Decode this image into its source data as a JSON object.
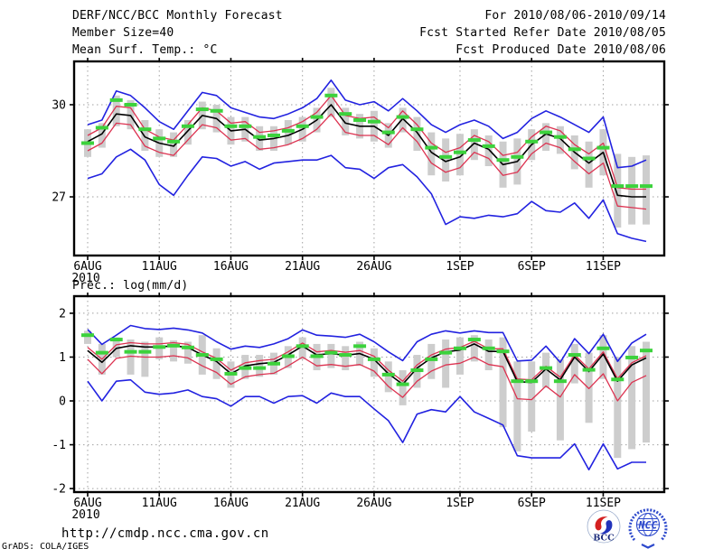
{
  "header": {
    "title": "DERF/NCC/BCC Monthly Forecast",
    "member_size": "Member Size=40",
    "for_range": "For 2010/08/06-2010/09/14",
    "fcst_started": "Fcst Started Refer Date 2010/08/05",
    "fcst_produced": "Fcst Produced Date 2010/08/06"
  },
  "labels": {
    "temp_chart_title": "Mean Surf. Temp.: °C",
    "precip_chart_title": "Prec.: log(mm/d)"
  },
  "footer": {
    "url": "http://cmdp.ncc.cma.gov.cn",
    "grads_credit": "GrADS: COLA/IGES",
    "bcc_logo_text": "BCC",
    "ncc_logo_text": "NCC"
  },
  "colors": {
    "ensemble_max_min": "#2222e0",
    "spread_band": "#dc3250",
    "ensemble_mean": "#000000",
    "verification_dash": "#3cd23c",
    "member_bar": "#cdcdcd",
    "gridline": "#a0a0a0",
    "frame": "#000000",
    "logo_blue": "#2d49cc",
    "logo_navy": "#1a2a7a",
    "logo_red": "#d42020"
  },
  "chart_data": [
    {
      "type": "line",
      "title": "Mean Surf. Temp.: °C",
      "xlabel": "",
      "ylabel": "°C",
      "x_year_label": "2010",
      "x_tick_labels": [
        "6AUG",
        "11AUG",
        "16AUG",
        "21AUG",
        "26AUG",
        "1SEP",
        "6SEP",
        "11SEP"
      ],
      "x_tick_days": [
        0,
        5,
        10,
        15,
        20,
        26,
        31,
        36
      ],
      "categories": [
        "6AUG",
        "7AUG",
        "8AUG",
        "9AUG",
        "10AUG",
        "11AUG",
        "12AUG",
        "13AUG",
        "14AUG",
        "15AUG",
        "16AUG",
        "17AUG",
        "18AUG",
        "19AUG",
        "20AUG",
        "21AUG",
        "22AUG",
        "23AUG",
        "24AUG",
        "25AUG",
        "26AUG",
        "27AUG",
        "28AUG",
        "29AUG",
        "30AUG",
        "31AUG",
        "1SEP",
        "2SEP",
        "3SEP",
        "4SEP",
        "5SEP",
        "6SEP",
        "7SEP",
        "8SEP",
        "9SEP",
        "10SEP",
        "11SEP",
        "12SEP",
        "13SEP",
        "14SEP"
      ],
      "ylim": [
        25.09,
        31.41
      ],
      "yticks": [
        27,
        30
      ],
      "grid": true,
      "legend": "none",
      "series": [
        {
          "name": "ensemble-max",
          "color": "#2222e0",
          "style": "line",
          "values": [
            29.35,
            29.5,
            30.45,
            30.3,
            29.9,
            29.45,
            29.2,
            29.8,
            30.4,
            30.3,
            29.9,
            29.75,
            29.6,
            29.55,
            29.7,
            29.9,
            30.2,
            30.8,
            30.15,
            30.0,
            30.1,
            29.8,
            30.2,
            29.8,
            29.35,
            29.1,
            29.35,
            29.5,
            29.3,
            28.9,
            29.1,
            29.55,
            29.8,
            29.6,
            29.35,
            29.1,
            29.6,
            27.95,
            28.0,
            28.2
          ]
        },
        {
          "name": "ensemble-min",
          "color": "#2222e0",
          "style": "line",
          "values": [
            27.6,
            27.75,
            28.3,
            28.55,
            28.2,
            27.4,
            27.05,
            27.7,
            28.3,
            28.25,
            28.0,
            28.15,
            27.9,
            28.1,
            28.15,
            28.2,
            28.2,
            28.35,
            27.95,
            27.9,
            27.6,
            27.95,
            28.05,
            27.65,
            27.1,
            26.1,
            26.35,
            26.3,
            26.4,
            26.35,
            26.45,
            26.85,
            26.55,
            26.5,
            26.8,
            26.3,
            26.9,
            25.8,
            25.65,
            25.55
          ]
        },
        {
          "name": "mean-plus-spread",
          "color": "#dc3250",
          "style": "line",
          "values": [
            29.0,
            29.25,
            29.95,
            29.9,
            29.2,
            28.95,
            28.85,
            29.35,
            29.9,
            29.8,
            29.4,
            29.45,
            29.1,
            29.15,
            29.25,
            29.45,
            29.75,
            30.3,
            29.65,
            29.55,
            29.6,
            29.25,
            29.8,
            29.35,
            28.75,
            28.45,
            28.6,
            29.0,
            28.8,
            28.35,
            28.45,
            28.95,
            29.3,
            29.15,
            28.7,
            28.4,
            28.75,
            27.3,
            27.25,
            27.25
          ]
        },
        {
          "name": "mean-minus-spread",
          "color": "#dc3250",
          "style": "line",
          "values": [
            28.5,
            28.75,
            29.4,
            29.35,
            28.65,
            28.45,
            28.35,
            28.85,
            29.35,
            29.25,
            28.85,
            28.9,
            28.55,
            28.6,
            28.7,
            28.9,
            29.2,
            29.7,
            29.1,
            29.0,
            29.0,
            28.7,
            29.25,
            28.8,
            28.1,
            27.8,
            27.95,
            28.45,
            28.25,
            27.7,
            27.8,
            28.4,
            28.75,
            28.6,
            28.15,
            27.75,
            28.1,
            26.7,
            26.65,
            26.6
          ]
        },
        {
          "name": "ensemble-mean",
          "color": "#000000",
          "style": "line",
          "values": [
            28.8,
            29.05,
            29.7,
            29.65,
            28.95,
            28.75,
            28.65,
            29.15,
            29.65,
            29.55,
            29.15,
            29.2,
            28.85,
            28.9,
            29.0,
            29.2,
            29.5,
            30.0,
            29.4,
            29.3,
            29.3,
            29.0,
            29.55,
            29.1,
            28.45,
            28.15,
            28.3,
            28.75,
            28.55,
            28.05,
            28.15,
            28.7,
            29.05,
            28.9,
            28.45,
            28.1,
            28.45,
            27.05,
            27.0,
            27.0
          ]
        },
        {
          "name": "verification",
          "color": "#3cd23c",
          "style": "dash-marker",
          "values": [
            28.75,
            29.25,
            30.15,
            30.0,
            29.2,
            28.9,
            28.8,
            29.3,
            29.85,
            29.8,
            29.3,
            29.3,
            28.95,
            29.0,
            29.15,
            29.3,
            29.6,
            30.3,
            29.7,
            29.5,
            29.45,
            29.1,
            29.6,
            29.2,
            28.6,
            28.3,
            28.45,
            28.85,
            28.65,
            28.2,
            28.3,
            28.8,
            29.1,
            28.95,
            28.55,
            28.25,
            28.6,
            27.35,
            27.35,
            27.35
          ]
        }
      ],
      "bars": {
        "name": "member-spread-bar",
        "color": "#cdcdcd",
        "top": [
          29.2,
          29.4,
          30.3,
          30.15,
          29.5,
          29.2,
          29.1,
          29.5,
          30.1,
          30.0,
          29.6,
          29.6,
          29.3,
          29.3,
          29.5,
          29.6,
          29.9,
          30.55,
          29.9,
          29.7,
          29.8,
          29.4,
          29.9,
          29.6,
          29.1,
          28.9,
          29.05,
          29.2,
          29.0,
          28.8,
          28.9,
          29.2,
          29.4,
          29.3,
          29.0,
          28.8,
          29.2,
          28.4,
          28.3,
          28.35
        ],
        "bottom": [
          28.3,
          28.6,
          29.3,
          29.2,
          28.5,
          28.3,
          28.3,
          28.7,
          29.2,
          29.1,
          28.7,
          28.8,
          28.5,
          28.5,
          28.7,
          28.8,
          29.1,
          29.6,
          29.0,
          28.9,
          28.8,
          28.6,
          29.1,
          28.5,
          27.7,
          27.5,
          27.7,
          28.2,
          28.0,
          27.3,
          27.4,
          28.2,
          28.5,
          28.4,
          27.9,
          27.3,
          27.7,
          26.0,
          26.1,
          26.1
        ]
      }
    },
    {
      "type": "line",
      "title": "Prec.: log(mm/d)",
      "xlabel": "",
      "ylabel": "log(mm/d)",
      "x_year_label": "2010",
      "x_tick_labels": [
        "6AUG",
        "11AUG",
        "16AUG",
        "21AUG",
        "26AUG",
        "1SEP",
        "6SEP",
        "11SEP"
      ],
      "x_tick_days": [
        0,
        5,
        10,
        15,
        20,
        26,
        31,
        36
      ],
      "categories": [
        "6AUG",
        "7AUG",
        "8AUG",
        "9AUG",
        "10AUG",
        "11AUG",
        "12AUG",
        "13AUG",
        "14AUG",
        "15AUG",
        "16AUG",
        "17AUG",
        "18AUG",
        "19AUG",
        "20AUG",
        "21AUG",
        "22AUG",
        "23AUG",
        "24AUG",
        "25AUG",
        "26AUG",
        "27AUG",
        "28AUG",
        "29AUG",
        "30AUG",
        "31AUG",
        "1SEP",
        "2SEP",
        "3SEP",
        "4SEP",
        "5SEP",
        "6SEP",
        "7SEP",
        "8SEP",
        "9SEP",
        "10SEP",
        "11SEP",
        "12SEP",
        "13SEP",
        "14SEP"
      ],
      "ylim": [
        -2.08,
        2.39
      ],
      "yticks": [
        -2,
        -1,
        0,
        1,
        2
      ],
      "grid": true,
      "legend": "none",
      "series": [
        {
          "name": "ensemble-max",
          "color": "#2222e0",
          "style": "line",
          "values": [
            1.63,
            1.29,
            1.5,
            1.72,
            1.65,
            1.63,
            1.66,
            1.62,
            1.55,
            1.35,
            1.18,
            1.25,
            1.22,
            1.3,
            1.42,
            1.62,
            1.5,
            1.48,
            1.45,
            1.52,
            1.35,
            1.12,
            0.92,
            1.35,
            1.52,
            1.6,
            1.55,
            1.6,
            1.56,
            1.56,
            0.91,
            0.93,
            1.25,
            0.88,
            1.42,
            1.08,
            1.52,
            0.9,
            1.32,
            1.52
          ]
        },
        {
          "name": "ensemble-min",
          "color": "#2222e0",
          "style": "line",
          "values": [
            0.45,
            0.0,
            0.45,
            0.48,
            0.2,
            0.15,
            0.18,
            0.25,
            0.1,
            0.05,
            -0.12,
            0.1,
            0.1,
            -0.05,
            0.1,
            0.12,
            -0.05,
            0.18,
            0.1,
            0.1,
            -0.18,
            -0.45,
            -0.95,
            -0.3,
            -0.2,
            -0.25,
            0.1,
            -0.25,
            -0.4,
            -0.55,
            -1.25,
            -1.3,
            -1.3,
            -1.3,
            -0.98,
            -1.57,
            -0.98,
            -1.55,
            -1.4,
            -1.4
          ]
        },
        {
          "name": "mean-plus-spread",
          "color": "#dc3250",
          "style": "line",
          "values": [
            1.22,
            0.95,
            1.28,
            1.33,
            1.3,
            1.3,
            1.33,
            1.29,
            1.12,
            0.97,
            0.7,
            0.87,
            0.92,
            0.95,
            1.12,
            1.32,
            1.12,
            1.15,
            1.11,
            1.15,
            1.02,
            0.7,
            0.45,
            0.82,
            1.05,
            1.18,
            1.22,
            1.36,
            1.19,
            1.19,
            0.5,
            0.48,
            0.79,
            0.54,
            1.05,
            0.73,
            1.12,
            0.51,
            0.87,
            1.03
          ]
        },
        {
          "name": "mean-minus-spread",
          "color": "#dc3250",
          "style": "line",
          "values": [
            0.95,
            0.62,
            0.97,
            1.02,
            1.0,
            1.0,
            1.03,
            0.98,
            0.8,
            0.65,
            0.38,
            0.55,
            0.6,
            0.63,
            0.8,
            1.0,
            0.8,
            0.83,
            0.79,
            0.83,
            0.68,
            0.33,
            0.08,
            0.45,
            0.68,
            0.82,
            0.86,
            1.0,
            0.83,
            0.78,
            0.05,
            0.03,
            0.34,
            0.09,
            0.6,
            0.28,
            0.62,
            0.0,
            0.42,
            0.58
          ]
        },
        {
          "name": "ensemble-mean",
          "color": "#000000",
          "style": "line",
          "values": [
            1.15,
            0.88,
            1.2,
            1.26,
            1.23,
            1.23,
            1.26,
            1.22,
            1.05,
            0.9,
            0.62,
            0.8,
            0.85,
            0.88,
            1.05,
            1.25,
            1.05,
            1.08,
            1.04,
            1.08,
            0.95,
            0.62,
            0.38,
            0.75,
            0.98,
            1.12,
            1.16,
            1.3,
            1.13,
            1.13,
            0.44,
            0.42,
            0.73,
            0.48,
            1.0,
            0.67,
            1.07,
            0.45,
            0.82,
            0.98
          ]
        },
        {
          "name": "verification",
          "color": "#3cd23c",
          "style": "dash-marker",
          "values": [
            1.5,
            1.1,
            1.4,
            1.12,
            1.12,
            1.23,
            1.26,
            1.22,
            1.05,
            0.95,
            0.62,
            0.75,
            0.75,
            0.85,
            1.02,
            1.25,
            1.02,
            1.1,
            1.05,
            1.25,
            0.95,
            0.6,
            0.38,
            0.7,
            0.95,
            1.1,
            1.2,
            1.4,
            1.2,
            1.13,
            0.45,
            0.45,
            0.75,
            0.45,
            1.05,
            0.71,
            1.2,
            0.49,
            0.99,
            1.15
          ]
        }
      ],
      "bars": {
        "name": "member-spread-bar",
        "color": "#cdcdcd",
        "top": [
          1.6,
          1.3,
          1.45,
          1.4,
          1.35,
          1.45,
          1.38,
          1.35,
          1.5,
          1.2,
          0.9,
          1.05,
          1.05,
          1.1,
          1.25,
          1.45,
          1.3,
          1.3,
          1.25,
          1.35,
          1.2,
          0.9,
          0.7,
          1.05,
          1.3,
          1.4,
          1.45,
          1.5,
          1.4,
          1.45,
          0.9,
          0.9,
          1.1,
          0.95,
          1.3,
          1.1,
          1.5,
          1.0,
          1.25,
          1.35
        ],
        "bottom": [
          1.3,
          0.6,
          1.0,
          0.6,
          0.55,
          0.95,
          0.9,
          0.85,
          0.6,
          0.5,
          0.3,
          0.5,
          0.55,
          0.6,
          0.75,
          0.95,
          0.7,
          0.75,
          0.7,
          0.8,
          0.55,
          0.2,
          -0.1,
          0.3,
          0.5,
          0.3,
          0.6,
          0.9,
          0.7,
          -0.6,
          -1.15,
          -0.7,
          0.3,
          -0.9,
          0.4,
          -0.5,
          0.5,
          -1.3,
          -1.1,
          -0.95
        ]
      }
    }
  ]
}
